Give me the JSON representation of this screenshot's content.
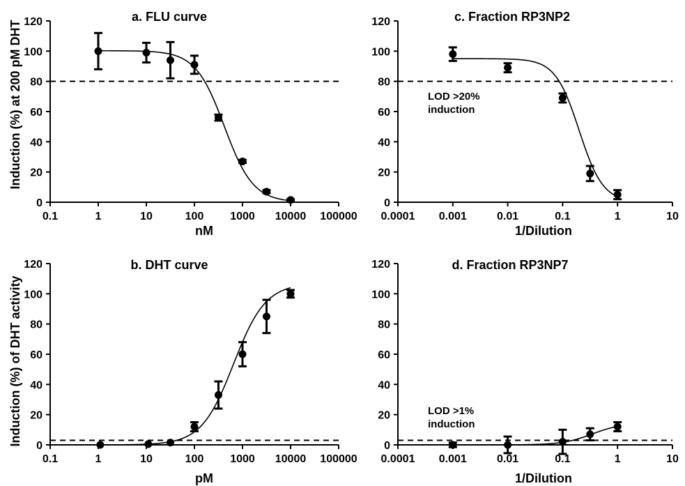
{
  "figure": {
    "ylabel_top": "Induction (%) at 200 pM DHT",
    "ylabel_bottom": "Induction (%) of DHT activity"
  },
  "chart_data": [
    {
      "id": "a",
      "type": "scatter",
      "title": "a. FLU curve",
      "xlabel": "nM",
      "ylabel": "Induction (%) at 200 pM DHT",
      "xscale": "log",
      "xlim": [
        0.1,
        100000
      ],
      "ylim": [
        0,
        120
      ],
      "xticks": [
        "0.1",
        "1",
        "10",
        "100",
        "1000",
        "10000",
        "100000"
      ],
      "yticks": [
        "0",
        "20",
        "40",
        "60",
        "80",
        "100",
        "120"
      ],
      "points": [
        {
          "x": 1,
          "y": 100,
          "err": 12
        },
        {
          "x": 10,
          "y": 99,
          "err": 6.5
        },
        {
          "x": 31.6,
          "y": 94,
          "err": 12
        },
        {
          "x": 100,
          "y": 91,
          "err": 6
        },
        {
          "x": 316,
          "y": 56,
          "err": 2
        },
        {
          "x": 1000,
          "y": 27,
          "err": 1
        },
        {
          "x": 3162,
          "y": 7,
          "err": 1
        },
        {
          "x": 10000,
          "y": 1.5,
          "err": 0.5
        }
      ],
      "fit": {
        "model": "four-parameter logistic",
        "bottom": 0,
        "top": 100.3,
        "ec50": 420,
        "hill": -1.45
      },
      "threshold": 80,
      "annotation": []
    },
    {
      "id": "c",
      "type": "scatter",
      "title": "c. Fraction RP3NP2",
      "xlabel": "1/Dilution",
      "ylabel": "",
      "xscale": "log",
      "xlim": [
        0.0001,
        10
      ],
      "ylim": [
        0,
        120
      ],
      "xticks": [
        "0.0001",
        "0.001",
        "0.01",
        "0.1",
        "1",
        "10"
      ],
      "yticks": [
        "0",
        "20",
        "40",
        "60",
        "80",
        "100",
        "120"
      ],
      "points": [
        {
          "x": 0.001,
          "y": 98,
          "err": 4.5
        },
        {
          "x": 0.01,
          "y": 89,
          "err": 3
        },
        {
          "x": 0.1,
          "y": 69,
          "err": 3
        },
        {
          "x": 0.316,
          "y": 19,
          "err": 5
        },
        {
          "x": 1,
          "y": 5,
          "err": 3
        }
      ],
      "fit": {
        "model": "four-parameter logistic",
        "bottom": 0,
        "top": 95,
        "ec50": 0.2,
        "hill": -2.0
      },
      "threshold": 80,
      "annotation": [
        "LOD >20%",
        "induction"
      ]
    },
    {
      "id": "b",
      "type": "scatter",
      "title": "b. DHT curve",
      "xlabel": "pM",
      "ylabel": "Induction (%) of DHT activity",
      "xscale": "log",
      "xlim": [
        0.1,
        100000
      ],
      "ylim": [
        0,
        120
      ],
      "xticks": [
        "0.1",
        "1",
        "10",
        "100",
        "1000",
        "10000",
        "100000"
      ],
      "yticks": [
        "0",
        "20",
        "40",
        "60",
        "80",
        "100",
        "120"
      ],
      "points": [
        {
          "x": 1.1,
          "y": 0,
          "err": 0
        },
        {
          "x": 11,
          "y": 0.5,
          "err": 0
        },
        {
          "x": 31.6,
          "y": 1.5,
          "err": 0
        },
        {
          "x": 100,
          "y": 12,
          "err": 3
        },
        {
          "x": 316,
          "y": 33,
          "err": 9
        },
        {
          "x": 1000,
          "y": 60,
          "err": 8
        },
        {
          "x": 3162,
          "y": 85,
          "err": 11
        },
        {
          "x": 10000,
          "y": 100,
          "err": 2.5
        }
      ],
      "fit": {
        "model": "four-parameter logistic",
        "bottom": 0,
        "top": 107,
        "ec50": 650,
        "hill": 1.3
      },
      "threshold": 3,
      "annotation": []
    },
    {
      "id": "d",
      "type": "scatter",
      "title": "d. Fraction RP3NP7",
      "xlabel": "1/Dilution",
      "ylabel": "",
      "xscale": "log",
      "xlim": [
        0.0001,
        10
      ],
      "ylim": [
        0,
        120
      ],
      "xticks": [
        "0.0001",
        "0.001",
        "0.01",
        "0.1",
        "1",
        "10"
      ],
      "yticks": [
        "0",
        "20",
        "40",
        "60",
        "80",
        "100",
        "120"
      ],
      "points": [
        {
          "x": 0.001,
          "y": 0,
          "err": 1.5
        },
        {
          "x": 0.01,
          "y": 0,
          "err": 5.5
        },
        {
          "x": 0.1,
          "y": 2,
          "err": 8
        },
        {
          "x": 0.316,
          "y": 7,
          "err": 4
        },
        {
          "x": 1,
          "y": 12,
          "err": 3
        }
      ],
      "fit": {
        "model": "four-parameter logistic",
        "bottom": 0,
        "top": 14.5,
        "ec50": 0.35,
        "hill": 1.6
      },
      "threshold": 3,
      "annotation": [
        "LOD >1%",
        "induction"
      ]
    }
  ]
}
